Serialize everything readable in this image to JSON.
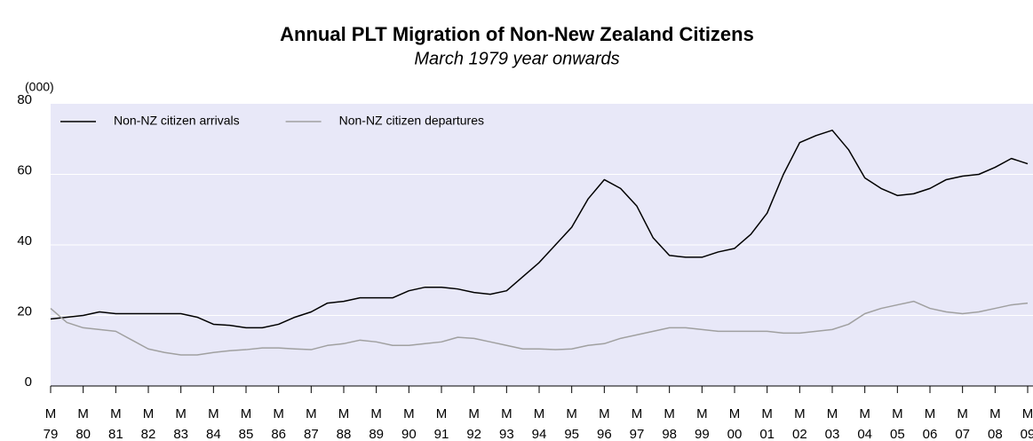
{
  "chart_data": {
    "type": "line",
    "title": "Annual PLT Migration of Non-New Zealand Citizens",
    "subtitle": "March 1979 year onwards",
    "y_label": "(000)",
    "categories": [
      "M\n79",
      null,
      "M\n80",
      null,
      "M\n81",
      null,
      "M\n82",
      null,
      "M\n83",
      null,
      "M\n84",
      null,
      "M\n85",
      null,
      "M\n86",
      null,
      "M\n87",
      null,
      "M\n88",
      null,
      "M\n89",
      null,
      "M\n90",
      null,
      "M\n91",
      null,
      "M\n92",
      null,
      "M\n93",
      null,
      "M\n94",
      null,
      "M\n95",
      null,
      "M\n96",
      null,
      "M\n97",
      null,
      "M\n98",
      null,
      "M\n99",
      null,
      "M\n00",
      null,
      "M\n01",
      null,
      "M\n02",
      null,
      "M\n03",
      null,
      "M\n04",
      null,
      "M\n05",
      null,
      "M\n06",
      null,
      "M\n07",
      null,
      "M\n08",
      null,
      "M\n09"
    ],
    "series": [
      {
        "name": "Non-NZ citizen arrivals",
        "color": "#000000",
        "values": [
          19,
          19.5,
          20,
          21,
          20.5,
          20.5,
          20.5,
          20.5,
          20.5,
          19.5,
          17.5,
          17.2,
          16.5,
          16.5,
          17.5,
          19.5,
          21,
          23.5,
          24,
          25,
          25,
          25,
          27,
          28,
          28,
          27.5,
          26.5,
          26,
          27,
          31,
          35,
          40,
          45,
          53,
          58.5,
          56,
          51,
          42,
          37,
          36.5,
          36.5,
          38,
          39,
          43,
          49,
          60,
          69,
          71,
          72.5,
          67,
          59,
          56,
          54,
          54.5,
          56,
          58.5,
          59.5,
          60,
          62,
          64.5,
          63
        ]
      },
      {
        "name": "Non-NZ citizen departures",
        "color": "#a0a0a0",
        "values": [
          22,
          18,
          16.5,
          16,
          15.5,
          13,
          10.5,
          9.5,
          8.8,
          8.8,
          9.5,
          10,
          10.3,
          10.8,
          10.8,
          10.5,
          10.3,
          11.5,
          12,
          13,
          12.5,
          11.5,
          11.5,
          12,
          12.5,
          13.8,
          13.5,
          12.5,
          11.5,
          10.5,
          10.5,
          10.3,
          10.5,
          11.5,
          12,
          13.5,
          14.5,
          15.5,
          16.5,
          16.5,
          16,
          15.5,
          15.5,
          15.5,
          15.5,
          15,
          15,
          15.5,
          16,
          17.5,
          20.5,
          22,
          23,
          24,
          22,
          21,
          20.5,
          21,
          22,
          23,
          23.5
        ]
      }
    ],
    "ylim": [
      0,
      80
    ],
    "yticks": [
      0,
      20,
      40,
      60,
      80
    ],
    "grid": true,
    "legend": "upper-left",
    "plot_background": "#e8e8f8"
  }
}
